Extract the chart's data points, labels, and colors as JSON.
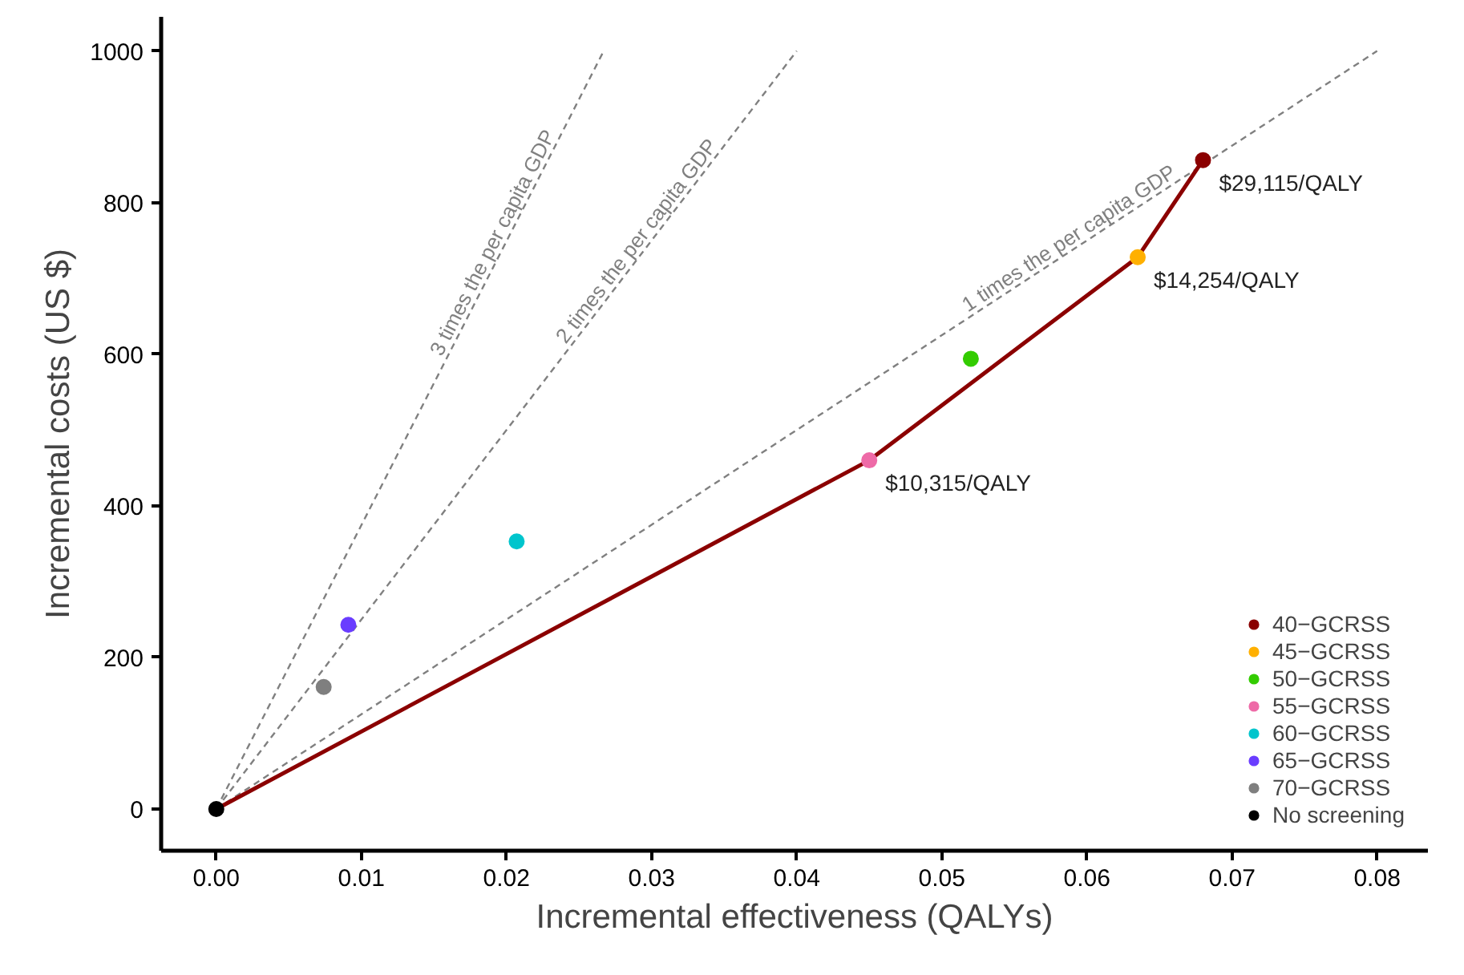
{
  "chart_data": {
    "type": "scatter",
    "xlabel": "Incremental effectiveness (QALYs)",
    "ylabel": "Incremental costs (US $)",
    "xlim": [
      -0.0038,
      0.0835
    ],
    "ylim": [
      -55,
      1045
    ],
    "xticks": [
      {
        "value": 0,
        "label": "0.00"
      },
      {
        "value": 0.01,
        "label": "0.01"
      },
      {
        "value": 0.02,
        "label": "0.02"
      },
      {
        "value": 0.03,
        "label": "0.03"
      },
      {
        "value": 0.04,
        "label": "0.04"
      },
      {
        "value": 0.05,
        "label": "0.05"
      },
      {
        "value": 0.06,
        "label": "0.06"
      },
      {
        "value": 0.07,
        "label": "0.07"
      },
      {
        "value": 0.08,
        "label": "0.08"
      }
    ],
    "yticks": [
      0,
      200,
      400,
      600,
      800,
      1000
    ],
    "grid": false,
    "legend": "bottom right",
    "marker": "circle",
    "series": [
      {
        "name": "3 times the per capita GDP",
        "type": "line",
        "marker": "none",
        "line_style": "dashed",
        "color": "#808080",
        "x": [
          0,
          0.0267
        ],
        "values": [
          0,
          1000
        ]
      },
      {
        "name": "2 times the per capita GDP",
        "type": "line",
        "marker": "none",
        "line_style": "dashed",
        "color": "#808080",
        "x": [
          0,
          0.04
        ],
        "values": [
          0,
          1000
        ]
      },
      {
        "name": "1 times the per capita GDP",
        "type": "line",
        "marker": "none",
        "line_style": "dashed",
        "color": "#808080",
        "x": [
          0,
          0.08
        ],
        "values": [
          0,
          1000
        ]
      },
      {
        "type": "line",
        "marker": "none",
        "line_style": "solid",
        "color": "#8b0000",
        "x": [
          0,
          0.045,
          0.0635,
          0.068
        ],
        "values": [
          0,
          460,
          728,
          856
        ]
      },
      {
        "name": "40−GCRSS",
        "color": "#8b0000",
        "x": [
          0.068
        ],
        "values": [
          856
        ]
      },
      {
        "name": "45−GCRSS",
        "color": "#ffb000",
        "x": [
          0.0635
        ],
        "values": [
          728
        ]
      },
      {
        "name": "50−GCRSS",
        "color": "#33cc00",
        "x": [
          0.052
        ],
        "values": [
          594
        ]
      },
      {
        "name": "55−GCRSS",
        "color": "#ee6aa7",
        "x": [
          0.045
        ],
        "values": [
          460
        ]
      },
      {
        "name": "60−GCRSS",
        "color": "#00c5cd",
        "x": [
          0.0207
        ],
        "values": [
          353
        ]
      },
      {
        "name": "65−GCRSS",
        "color": "#6a3dff",
        "x": [
          0.0091
        ],
        "values": [
          243
        ]
      },
      {
        "name": "70−GCRSS",
        "color": "#7f7f7f",
        "x": [
          0.0074
        ],
        "values": [
          161
        ]
      },
      {
        "name": "No screening",
        "color": "#000000",
        "x": [
          0
        ],
        "values": [
          0
        ]
      }
    ],
    "annotations": [
      {
        "text": "$29,115/QALY",
        "x": 0.068,
        "y": 856
      },
      {
        "text": "$14,254/QALY",
        "x": 0.0635,
        "y": 728
      },
      {
        "text": "$10,315/QALY",
        "x": 0.045,
        "y": 460
      }
    ]
  }
}
